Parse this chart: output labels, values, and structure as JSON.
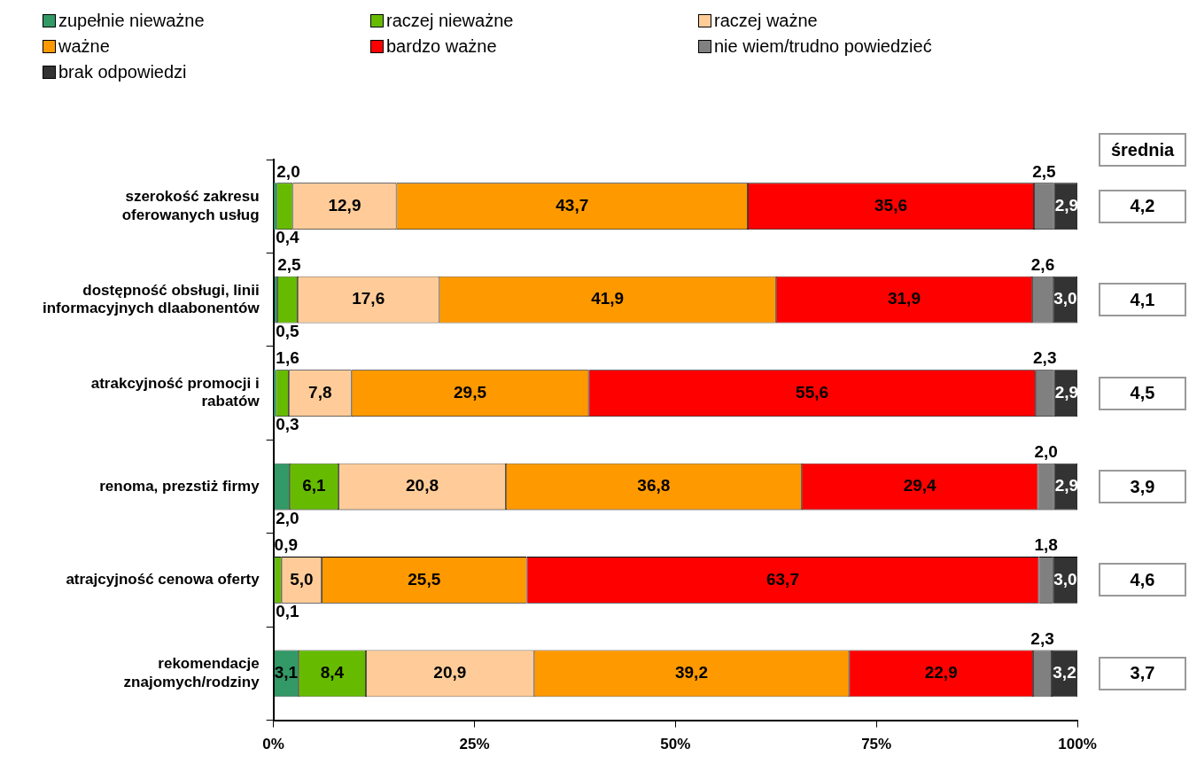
{
  "chart_data": {
    "type": "bar",
    "orientation": "horizontal",
    "stacked": true,
    "categories": [
      "szerokość zakresu oferowanych usług",
      "dostępność obsługi, linii informacyjnych dlaabonentów",
      "atrakcyjność promocji i rabatów",
      "renoma, prezstiż firmy",
      "atrajcyjność cenowa oferty",
      "rekomendacje znajomych/rodziny"
    ],
    "series": [
      {
        "name": "zupełnie nieważne",
        "color": "#339966",
        "values": [
          0.4,
          0.5,
          0.3,
          2.0,
          0.1,
          3.1
        ],
        "value_labels": [
          "0,4",
          "0,5",
          "0,3",
          "2,0",
          "0,1",
          "3,1"
        ]
      },
      {
        "name": "raczej nieważne",
        "color": "#66bb00",
        "values": [
          2.0,
          2.5,
          1.6,
          6.1,
          0.9,
          8.4
        ],
        "value_labels": [
          "2,0",
          "2,5",
          "1,6",
          "6,1",
          "0,9",
          "8,4"
        ]
      },
      {
        "name": "raczej ważne",
        "color": "#ffcc99",
        "values": [
          12.9,
          17.6,
          7.8,
          20.8,
          5.0,
          20.9
        ],
        "value_labels": [
          "12,9",
          "17,6",
          "7,8",
          "20,8",
          "5,0",
          "20,9"
        ]
      },
      {
        "name": "ważne",
        "color": "#ff9900",
        "values": [
          43.7,
          41.9,
          29.5,
          36.8,
          25.5,
          39.2
        ],
        "value_labels": [
          "43,7",
          "41,9",
          "29,5",
          "36,8",
          "25,5",
          "39,2"
        ]
      },
      {
        "name": "bardzo ważne",
        "color": "#ff0000",
        "values": [
          35.6,
          31.9,
          55.6,
          29.4,
          63.7,
          22.9
        ],
        "value_labels": [
          "35,6",
          "31,9",
          "55,6",
          "29,4",
          "63,7",
          "22,9"
        ]
      },
      {
        "name": "nie wiem/trudno powiedzieć",
        "color": "#808080",
        "values": [
          2.5,
          2.6,
          2.3,
          2.0,
          1.8,
          2.3
        ],
        "value_labels": [
          "2,5",
          "2,6",
          "2,3",
          "2,0",
          "1,8",
          "2,3"
        ]
      },
      {
        "name": "brak odpowiedzi",
        "color": "#333333",
        "values": [
          2.9,
          3.0,
          2.9,
          2.9,
          3.0,
          3.2
        ],
        "value_labels": [
          "2,9",
          "3,0",
          "2,9",
          "2,9",
          "3,0",
          "3,2"
        ]
      }
    ],
    "xlim": [
      0,
      100
    ],
    "xticks": [
      {
        "value": 0,
        "label": "0%"
      },
      {
        "value": 25,
        "label": "25%"
      },
      {
        "value": 50,
        "label": "50%"
      },
      {
        "value": 75,
        "label": "75%"
      },
      {
        "value": 100,
        "label": "100%"
      }
    ],
    "legend": "top",
    "grid": false,
    "annotations": [
      "średnia",
      "4,2",
      "4,1",
      "4,5",
      "3,9",
      "4,6",
      "3,7"
    ]
  }
}
